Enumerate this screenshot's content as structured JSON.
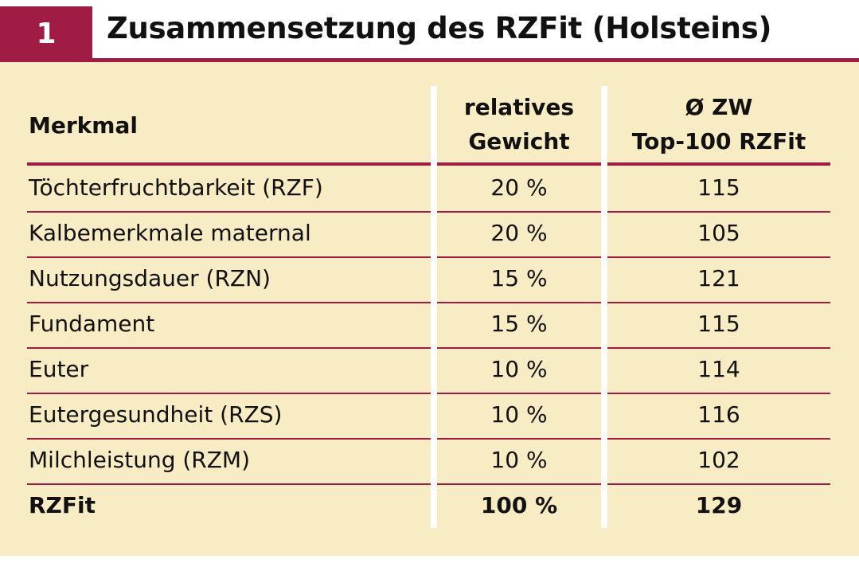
{
  "figure_number": "1",
  "title": "Zusammensetzung des RZFit (Holsteins)",
  "colors": {
    "accent": "#a01c44",
    "panel": "#f8ecc4",
    "text": "#111111"
  },
  "chart_data": {
    "type": "table",
    "columns": [
      "Merkmal",
      "relatives Gewicht",
      "Ø ZW Top-100 RZFit"
    ],
    "header_lines": {
      "merkmal": "Merkmal",
      "weight_1": "relatives",
      "weight_2": "Gewicht",
      "zw_1": "Ø ZW",
      "zw_2": "Top-100 RZFit"
    },
    "rows": [
      {
        "merkmal": "Töchterfruchtbarkeit (RZF)",
        "gewicht": "20 %",
        "zw": "115"
      },
      {
        "merkmal": "Kalbemerkmale maternal",
        "gewicht": "20 %",
        "zw": "105"
      },
      {
        "merkmal": "Nutzungsdauer (RZN)",
        "gewicht": "15 %",
        "zw": "121"
      },
      {
        "merkmal": "Fundament",
        "gewicht": "15 %",
        "zw": "115"
      },
      {
        "merkmal": "Euter",
        "gewicht": "10 %",
        "zw": "114"
      },
      {
        "merkmal": "Eutergesundheit (RZS)",
        "gewicht": "10 %",
        "zw": "116"
      },
      {
        "merkmal": "Milchleistung (RZM)",
        "gewicht": "10 %",
        "zw": "102"
      }
    ],
    "total": {
      "merkmal": "RZFit",
      "gewicht": "100 %",
      "zw": "129"
    }
  }
}
